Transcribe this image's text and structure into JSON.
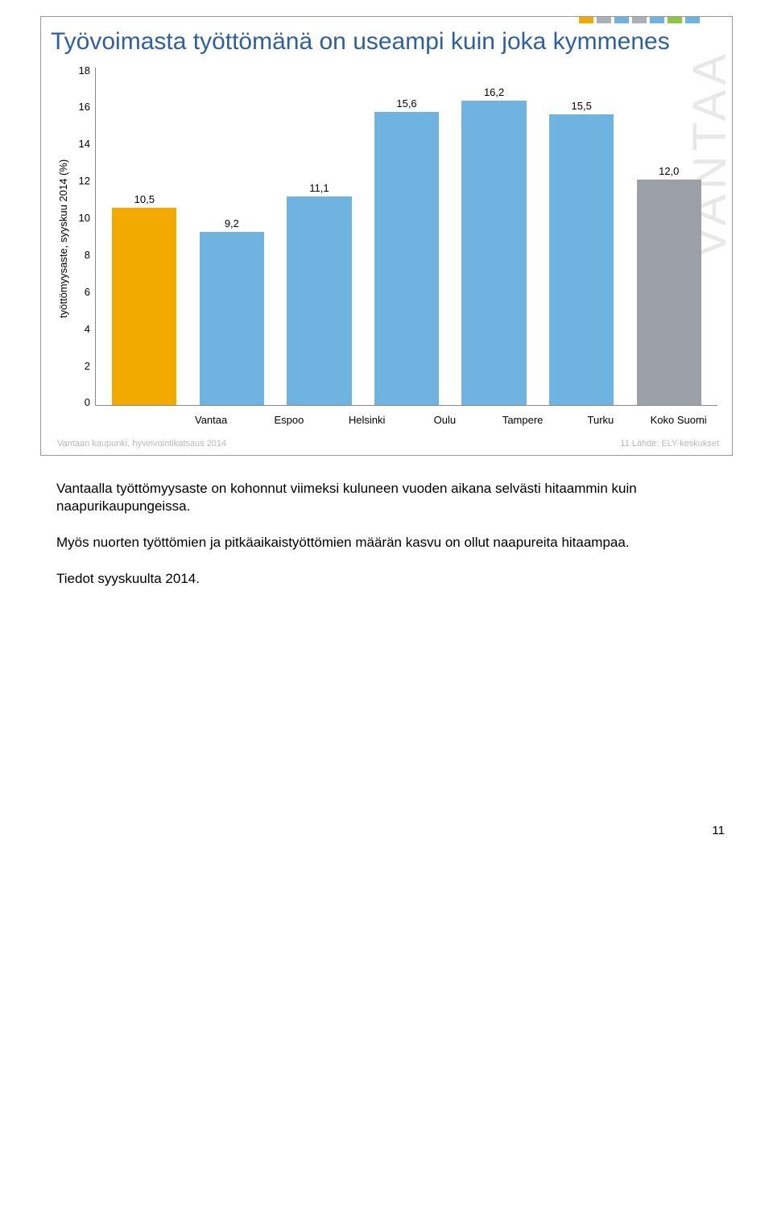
{
  "strip_colors": [
    "#f2a900",
    "#aab0b6",
    "#6fb4e0",
    "#aab0b6",
    "#6fb4e0",
    "#8dc63f",
    "#6fb4e0"
  ],
  "slide_title": "Työvoimasta työttömänä on useampi kuin joka kymmenes",
  "watermark": "VANTAA",
  "chart": {
    "type": "bar",
    "y_label": "työttömyysaste, syyskuu 2014 (%)",
    "ylim_max": 18,
    "ytick_step": 2,
    "categories": [
      "Vantaa",
      "Espoo",
      "Helsinki",
      "Oulu",
      "Tampere",
      "Turku",
      "Koko Suomi"
    ],
    "values": [
      10.5,
      9.2,
      11.1,
      15.6,
      16.2,
      15.5,
      12.0
    ],
    "value_labels": [
      "10,5",
      "9,2",
      "11,1",
      "15,6",
      "16,2",
      "15,5",
      "12,0"
    ],
    "bar_colors": [
      "#f2a900",
      "#6fb4e0",
      "#6fb4e0",
      "#6fb4e0",
      "#6fb4e0",
      "#6fb4e0",
      "#9aa0a6"
    ],
    "axis_color": "#888888",
    "label_fontsize": 13,
    "value_fontsize": 13,
    "bar_width_pct": 74
  },
  "footer_left": "Vantaan kaupunki, hyvinvointikatsaus 2014",
  "footer_right": "11  Lähde: ELY-keskukset",
  "paragraphs": [
    "Vantaalla työttömyysaste on kohonnut viimeksi kuluneen vuoden aikana selvästi hitaammin kuin naapurikaupungeissa.",
    "Myös nuorten työttömien ja pitkäaikaistyöttömien määrän kasvu on ollut naapureita hitaampaa.",
    "Tiedot syyskuulta 2014."
  ],
  "page_number": "11"
}
